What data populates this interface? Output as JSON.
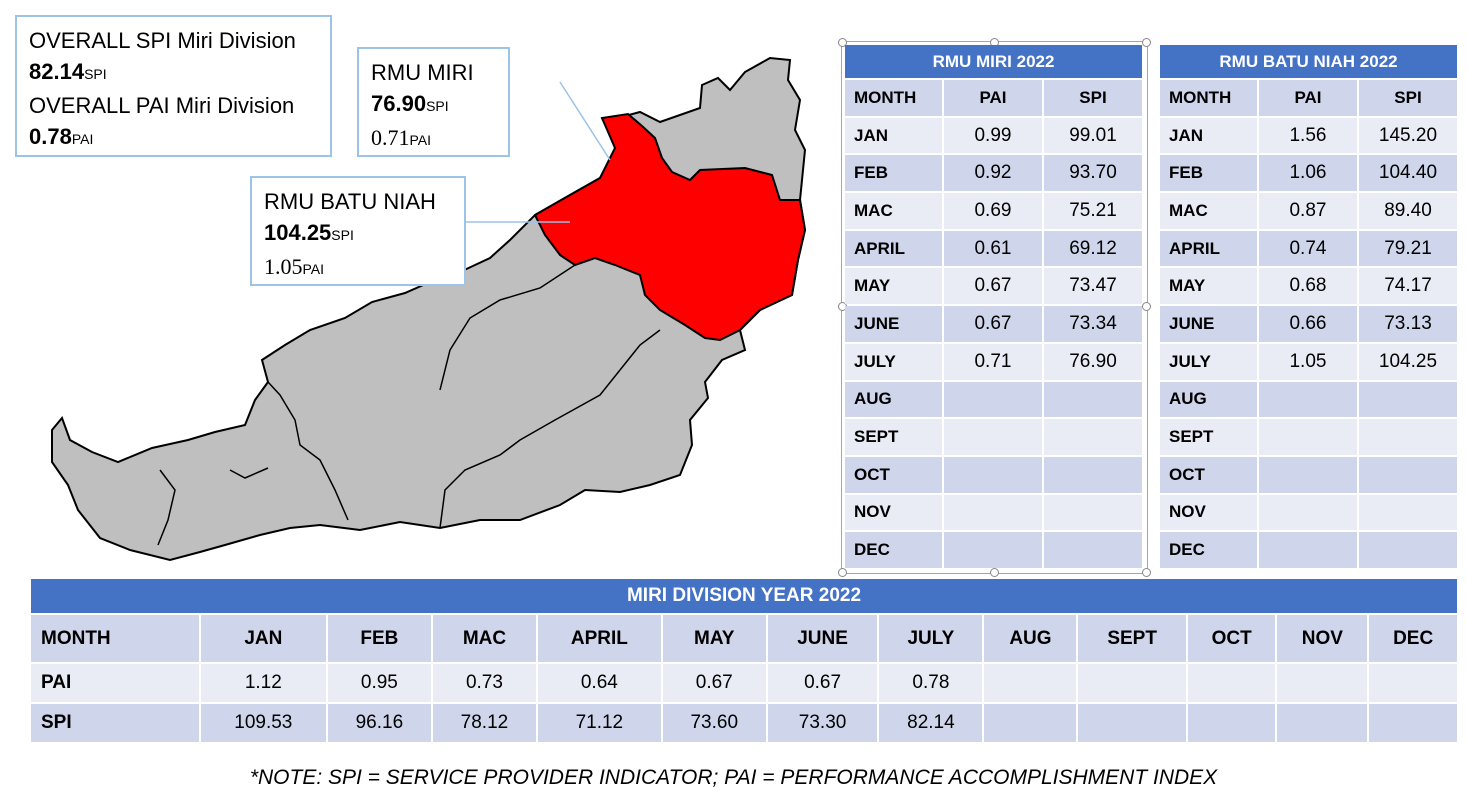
{
  "overall": {
    "spi_line": "OVERALL SPI Miri Division",
    "spi_value": "82.14",
    "spi_unit": "SPI",
    "pai_line": "OVERALL PAI Miri Division",
    "pai_value": "0.78",
    "pai_unit": "PAI"
  },
  "rmu_miri_callout": {
    "title": "RMU MIRI",
    "spi_value": "76.90",
    "spi_unit": "SPI",
    "pai_value": "0.71",
    "pai_unit": "PAI"
  },
  "rmu_batu_niah_callout": {
    "title": "RMU BATU NIAH",
    "spi_value": "104.25",
    "spi_unit": "SPI",
    "pai_value": "1.05",
    "pai_unit": "PAI"
  },
  "map": {
    "highlight_color": "#ff0000",
    "base_color": "#bfbfbf",
    "border_color": "#000000"
  },
  "rmu_miri_table": {
    "title": "RMU MIRI 2022",
    "headers": [
      "MONTH",
      "PAI",
      "SPI"
    ],
    "rows": [
      [
        "JAN",
        "0.99",
        "99.01"
      ],
      [
        "FEB",
        "0.92",
        "93.70"
      ],
      [
        "MAC",
        "0.69",
        "75.21"
      ],
      [
        "APRIL",
        "0.61",
        "69.12"
      ],
      [
        "MAY",
        "0.67",
        "73.47"
      ],
      [
        "JUNE",
        "0.67",
        "73.34"
      ],
      [
        "JULY",
        "0.71",
        "76.90"
      ],
      [
        "AUG",
        "",
        ""
      ],
      [
        "SEPT",
        "",
        ""
      ],
      [
        "OCT",
        "",
        ""
      ],
      [
        "NOV",
        "",
        ""
      ],
      [
        "DEC",
        "",
        ""
      ]
    ]
  },
  "rmu_batu_niah_table": {
    "title": "RMU BATU NIAH 2022",
    "headers": [
      "MONTH",
      "PAI",
      "SPI"
    ],
    "rows": [
      [
        "JAN",
        "1.56",
        "145.20"
      ],
      [
        "FEB",
        "1.06",
        "104.40"
      ],
      [
        "MAC",
        "0.87",
        "89.40"
      ],
      [
        "APRIL",
        "0.74",
        "79.21"
      ],
      [
        "MAY",
        "0.68",
        "74.17"
      ],
      [
        "JUNE",
        "0.66",
        "73.13"
      ],
      [
        "JULY",
        "1.05",
        "104.25"
      ],
      [
        "AUG",
        "",
        ""
      ],
      [
        "SEPT",
        "",
        ""
      ],
      [
        "OCT",
        "",
        ""
      ],
      [
        "NOV",
        "",
        ""
      ],
      [
        "DEC",
        "",
        ""
      ]
    ]
  },
  "division_table": {
    "title": "MIRI DIVISION YEAR 2022",
    "header_label": "MONTH",
    "months": [
      "JAN",
      "FEB",
      "MAC",
      "APRIL",
      "MAY",
      "JUNE",
      "JULY",
      "AUG",
      "SEPT",
      "OCT",
      "NOV",
      "DEC"
    ],
    "pai_label": "PAI",
    "pai": [
      "1.12",
      "0.95",
      "0.73",
      "0.64",
      "0.67",
      "0.67",
      "0.78",
      "",
      "",
      "",
      "",
      ""
    ],
    "spi_label": "SPI",
    "spi": [
      "109.53",
      "96.16",
      "78.12",
      "71.12",
      "73.60",
      "73.30",
      "82.14",
      "",
      "",
      "",
      "",
      ""
    ]
  },
  "note": "*NOTE: SPI = SERVICE PROVIDER INDICATOR; PAI = PERFORMANCE ACCOMPLISHMENT INDEX"
}
